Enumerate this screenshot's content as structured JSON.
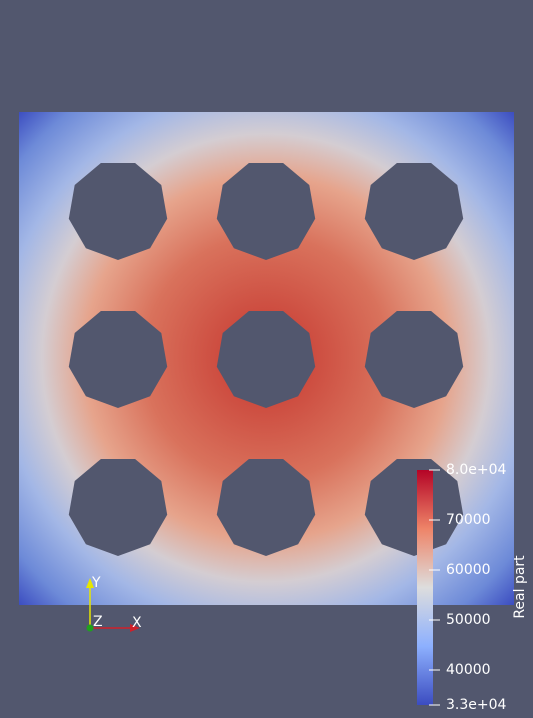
{
  "colorbar": {
    "title": "Real part",
    "range": [
      33000,
      80000
    ],
    "ticks": [
      {
        "value": 80000,
        "label": "8.0e+04"
      },
      70000,
      60000,
      50000,
      40000,
      {
        "value": 33000,
        "label": "3.3e+04"
      }
    ]
  },
  "axes": {
    "y": "Y",
    "z": "Z",
    "x": "X"
  }
}
